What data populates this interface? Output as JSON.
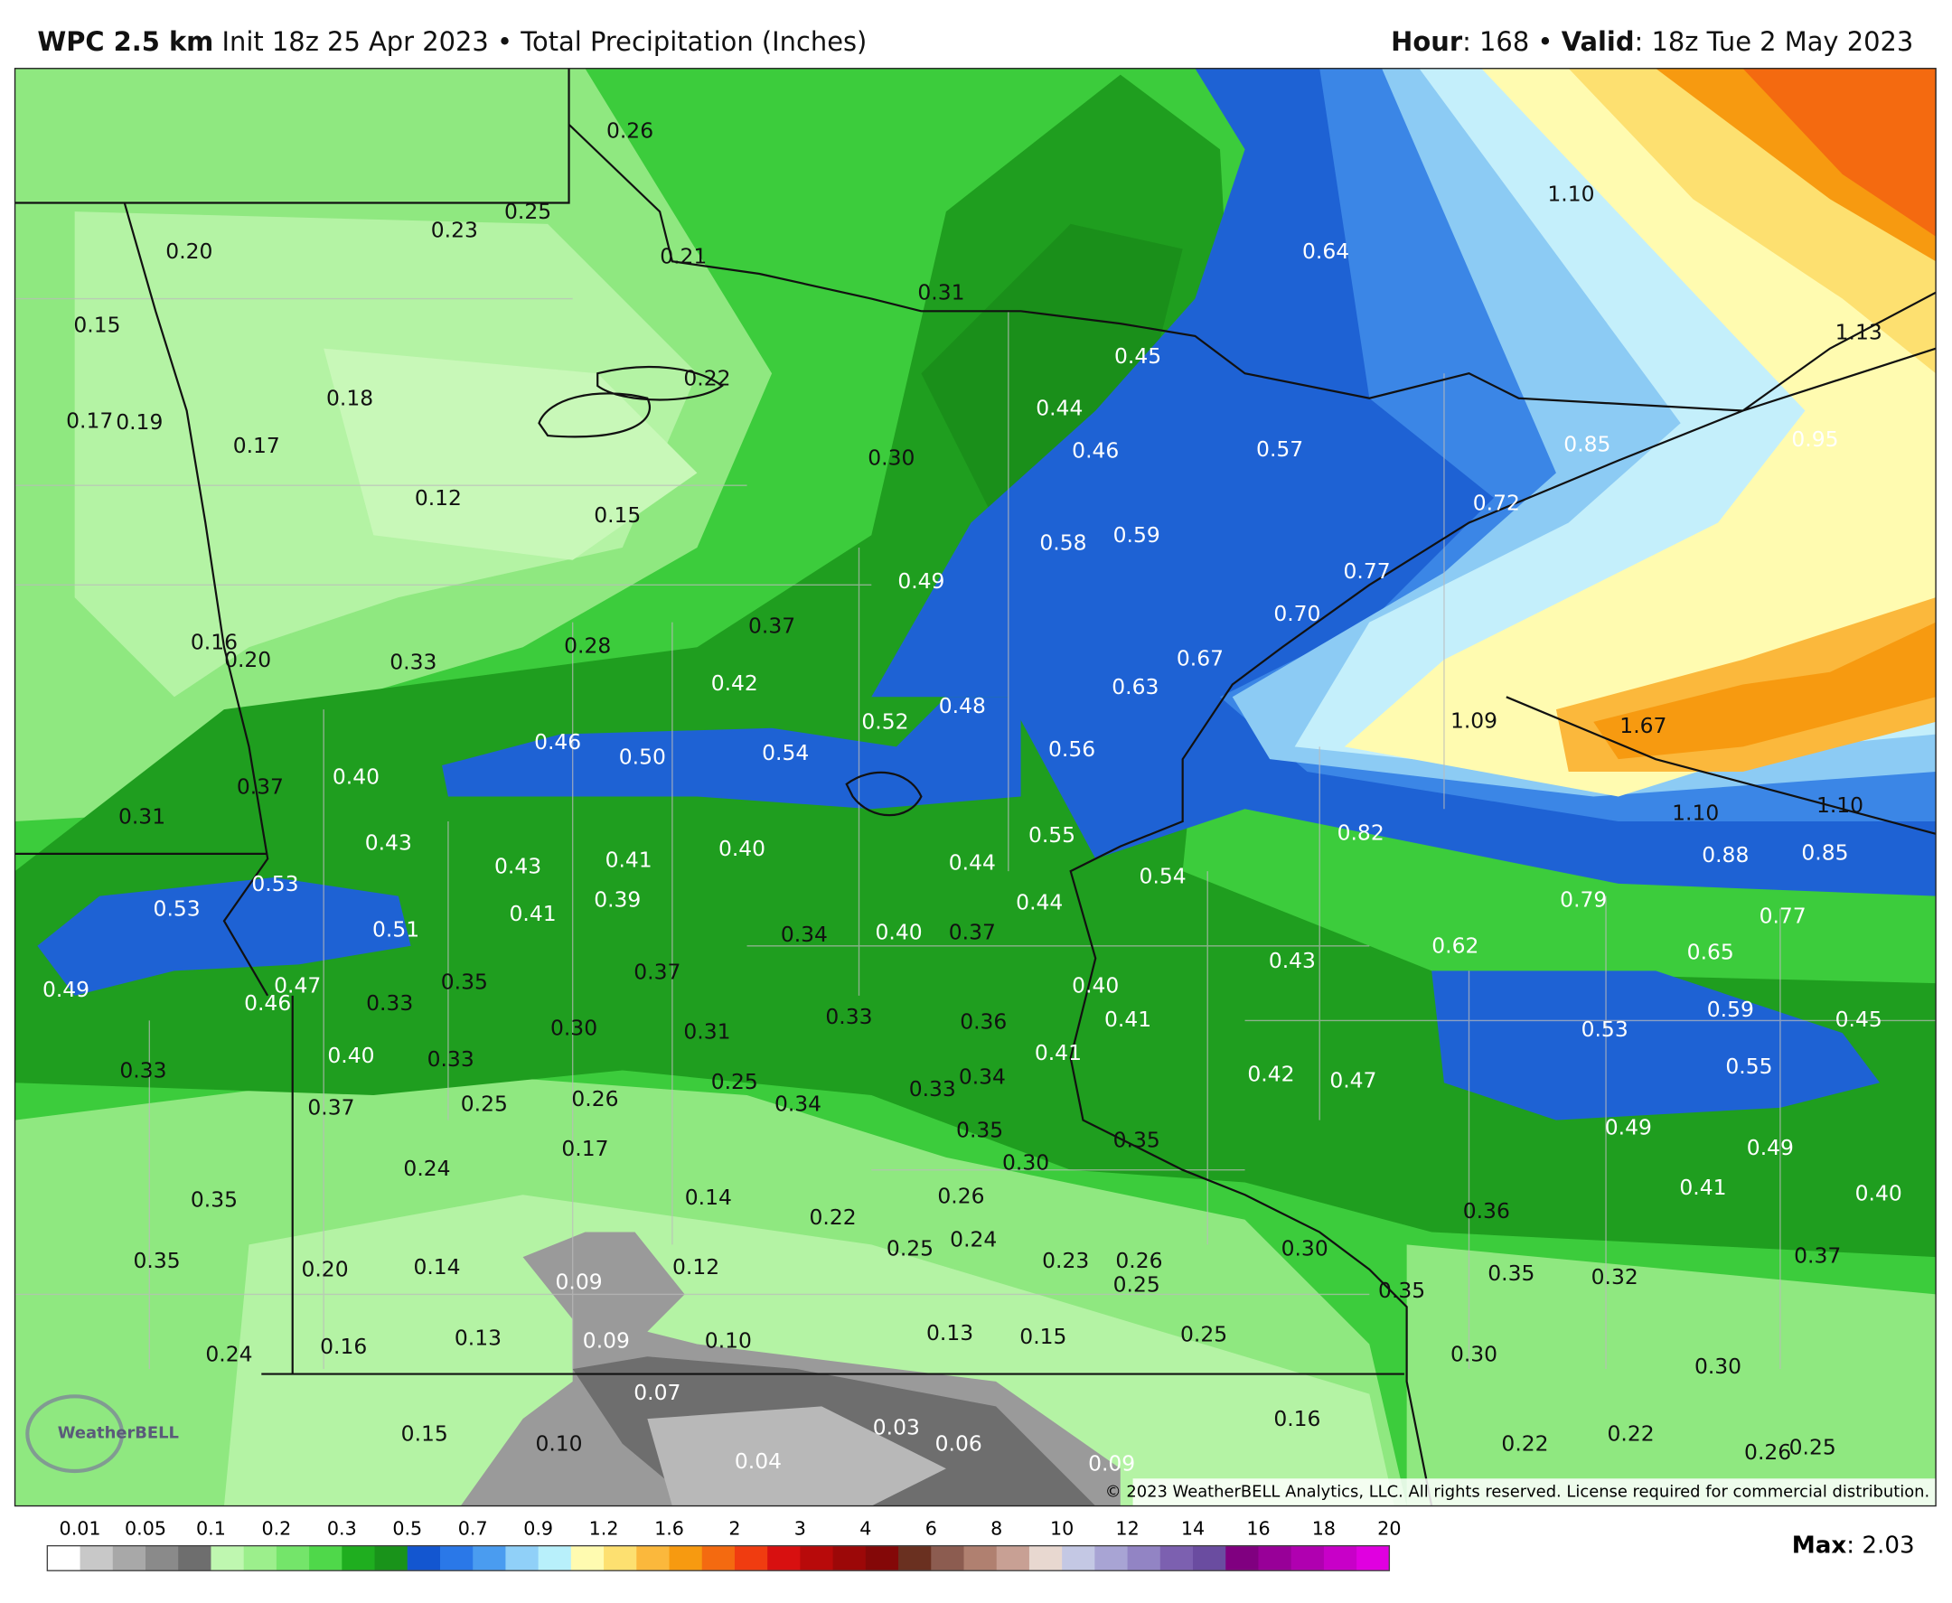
{
  "header": {
    "model": "WPC 2.5 km",
    "init": "Init 18z 25 Apr 2023",
    "bullet": "•",
    "product": "Total Precipitation (Inches)",
    "hour_label": "Hour",
    "colon": ":",
    "hour": "168",
    "valid_label": "Valid",
    "valid": "18z Tue 2 May 2023"
  },
  "map": {
    "labels": [
      "0.26",
      "0.25",
      "0.23",
      "0.20",
      "0.21",
      "0.31",
      "0.15",
      "0.22",
      "0.18",
      "0.45",
      "0.44",
      "0.17",
      "0.19",
      "0.17",
      "0.46",
      "0.30",
      "0.57",
      "0.12",
      "0.15",
      "0.58",
      "0.59",
      "0.49",
      "0.16",
      "0.20",
      "0.33",
      "0.28",
      "0.37",
      "0.42",
      "0.52",
      "0.48",
      "0.63",
      "0.67",
      "0.70",
      "0.77",
      "0.72",
      "0.85",
      "0.95",
      "1.13",
      "1.10",
      "0.64",
      "0.46",
      "0.50",
      "0.54",
      "0.56",
      "1.09",
      "1.67",
      "0.37",
      "0.40",
      "0.31",
      "1.10",
      "1.10",
      "0.82",
      "0.55",
      "0.88",
      "0.85",
      "0.43",
      "0.43",
      "0.41",
      "0.40",
      "0.44",
      "0.54",
      "0.53",
      "0.53",
      "0.41",
      "0.39",
      "0.44",
      "0.79",
      "0.77",
      "0.51",
      "0.34",
      "0.40",
      "0.37",
      "0.62",
      "0.65",
      "0.43",
      "0.49",
      "0.47",
      "0.46",
      "0.33",
      "0.35",
      "0.37",
      "0.40",
      "0.59",
      "0.45",
      "0.30",
      "0.31",
      "0.33",
      "0.36",
      "0.41",
      "0.53",
      "0.33",
      "0.40",
      "0.33",
      "0.41",
      "0.55",
      "0.42",
      "0.47",
      "0.37",
      "0.25",
      "0.26",
      "0.25",
      "0.34",
      "0.33",
      "0.34",
      "0.35",
      "0.35",
      "0.49",
      "0.49",
      "0.30",
      "0.17",
      "0.24",
      "0.35",
      "0.14",
      "0.22",
      "0.26",
      "0.41",
      "0.40",
      "0.36",
      "0.24",
      "0.25",
      "0.30",
      "0.35",
      "0.20",
      "0.14",
      "0.09",
      "0.12",
      "0.23",
      "0.26",
      "0.25",
      "0.35",
      "0.32",
      "0.37",
      "0.35",
      "0.24",
      "0.16",
      "0.13",
      "0.09",
      "0.10",
      "0.13",
      "0.15",
      "0.25",
      "0.30",
      "0.30",
      "0.07",
      "0.16",
      "0.15",
      "0.10",
      "0.03",
      "0.06",
      "0.04",
      "0.09",
      "0.22",
      "0.22",
      "0.26",
      "0.25"
    ],
    "copyright": "© 2023 WeatherBELL Analytics, LLC. All rights reserved. License required for commercial distribution.",
    "logo": "WeatherBELL"
  },
  "legend": {
    "ticks": [
      "0.01",
      "0.05",
      "0.1",
      "0.2",
      "0.3",
      "0.5",
      "0.7",
      "0.9",
      "1.2",
      "1.6",
      "2",
      "3",
      "4",
      "6",
      "8",
      "10",
      "12",
      "14",
      "16",
      "18",
      "20"
    ],
    "colors": [
      "#ffffff",
      "#c8c8c8",
      "#a8a8a8",
      "#8a8a8a",
      "#6e6e6e",
      "#bff7b0",
      "#9cef8c",
      "#74e56a",
      "#4fd84a",
      "#1fae1f",
      "#19931a",
      "#1356d0",
      "#2a78e8",
      "#4a9cf0",
      "#90d0f8",
      "#b8f0fb",
      "#fffbb0",
      "#fde070",
      "#fbb83c",
      "#f79a10",
      "#f46a10",
      "#f03c10",
      "#d81010",
      "#b80a0a",
      "#9c0808",
      "#840808",
      "#6a3020",
      "#8c5c50",
      "#b08070",
      "#c8a094",
      "#e8d8d0",
      "#c4c8e4",
      "#a8a4d4",
      "#9284c4",
      "#7c60b0",
      "#6a4ca0",
      "#800080",
      "#980098",
      "#b000b0",
      "#c800c8",
      "#e000e0"
    ]
  },
  "max": {
    "label": "Max",
    "value": "2.03"
  }
}
